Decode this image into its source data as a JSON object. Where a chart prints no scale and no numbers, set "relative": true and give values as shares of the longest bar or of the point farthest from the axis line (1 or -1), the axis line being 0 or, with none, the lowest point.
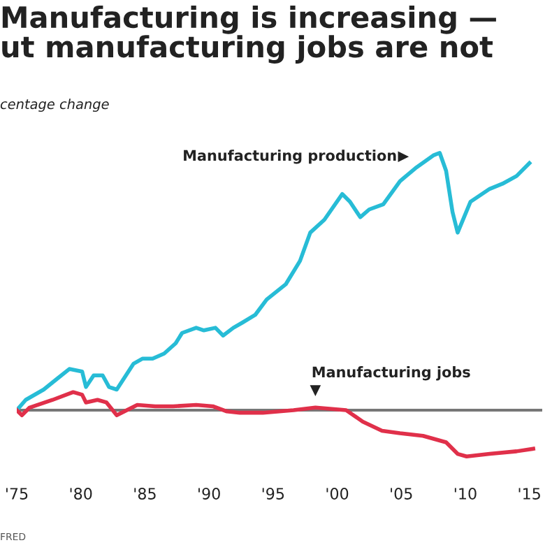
{
  "chart_data": {
    "type": "line",
    "title": "Manufacturing is increasing —\nut manufacturing jobs are not",
    "ylabel": "centage change",
    "relative": true,
    "xlim": [
      1975,
      2016
    ],
    "xticks": [
      {
        "value": 1975,
        "label": "'75"
      },
      {
        "value": 1980,
        "label": "'80"
      },
      {
        "value": 1985,
        "label": "'85"
      },
      {
        "value": 1990,
        "label": "'90"
      },
      {
        "value": 1995,
        "label": "'95"
      },
      {
        "value": 2000,
        "label": "'00"
      },
      {
        "value": 2005,
        "label": "'05"
      },
      {
        "value": 2010,
        "label": "'10"
      },
      {
        "value": 2015,
        "label": "'15"
      }
    ],
    "annotations": [
      "FRED"
    ],
    "grid": false,
    "legend": false,
    "series": [
      {
        "name": "Manufacturing production",
        "color": "#27bcd6",
        "x": [
          1975,
          1975.7,
          1977.1,
          1978.1,
          1979.1,
          1980.1,
          1980.4,
          1981,
          1981.7,
          1982.2,
          1982.8,
          1984.1,
          1984.8,
          1985.6,
          1986.5,
          1987.4,
          1987.9,
          1989,
          1989.6,
          1990.5,
          1991.1,
          1991.9,
          1992.6,
          1993.6,
          1994.5,
          1996,
          1997.1,
          1997.9,
          1999,
          2000.4,
          2001,
          2001.8,
          2002.5,
          2003.6,
          2004.9,
          2006.1,
          2007.5,
          2008,
          2008.5,
          2009,
          2009.4,
          2010.4,
          2011.9,
          2012.9,
          2014,
          2015
        ],
        "values": [
          0,
          0.04,
          0.08,
          0.12,
          0.16,
          0.15,
          0.09,
          0.135,
          0.135,
          0.09,
          0.08,
          0.18,
          0.2,
          0.2,
          0.22,
          0.26,
          0.3,
          0.32,
          0.31,
          0.32,
          0.29,
          0.32,
          0.34,
          0.37,
          0.43,
          0.49,
          0.58,
          0.69,
          0.74,
          0.84,
          0.81,
          0.75,
          0.78,
          0.8,
          0.89,
          0.94,
          0.99,
          1.0,
          0.93,
          0.77,
          0.69,
          0.81,
          0.86,
          0.88,
          0.91,
          0.96
        ]
      },
      {
        "name": "Manufacturing jobs",
        "color": "#e0304a",
        "x": [
          1975,
          1975.4,
          1976,
          1977.8,
          1979.4,
          1980.1,
          1980.4,
          1981.3,
          1982,
          1982.8,
          1984.4,
          1985.8,
          1987.2,
          1989,
          1990.3,
          1991.4,
          1992.4,
          1994.2,
          1996.6,
          1998.3,
          2000.7,
          2002,
          2003.5,
          2004.9,
          2006.7,
          2008.5,
          2009.4,
          2010.1,
          2011.9,
          2014,
          2015.3
        ],
        "values": [
          0,
          -0.02,
          0.01,
          0.04,
          0.07,
          0.06,
          0.03,
          0.04,
          0.03,
          -0.02,
          0.02,
          0.015,
          0.015,
          0.02,
          0.015,
          -0.005,
          -0.01,
          -0.01,
          0,
          0.01,
          0,
          -0.045,
          -0.08,
          -0.09,
          -0.1,
          -0.125,
          -0.17,
          -0.18,
          -0.17,
          -0.16,
          -0.15
        ]
      }
    ]
  }
}
